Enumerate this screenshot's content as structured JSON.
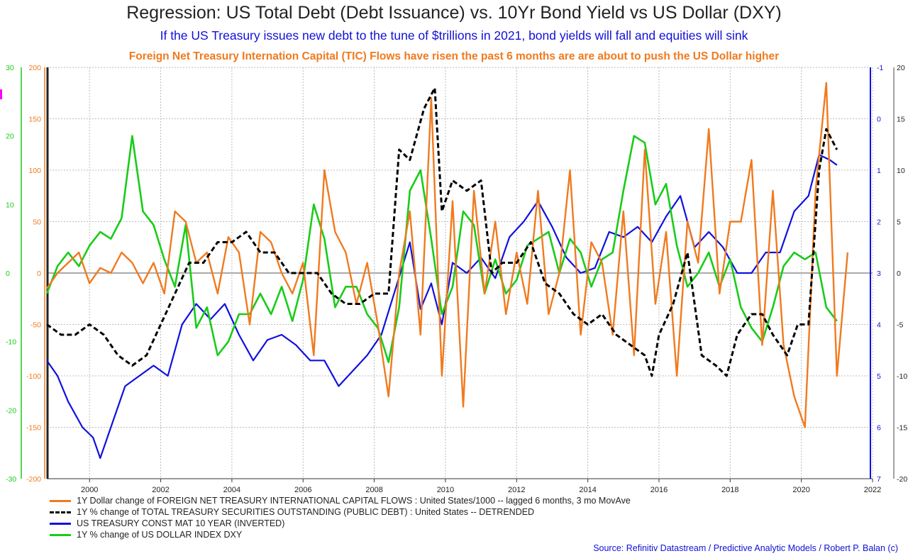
{
  "header": {
    "title": "Regression: US Total Debt (Debt Issuance) vs. 10Yr Bond Yield vs US Dollar (DXY)",
    "subtitle": "If the US Treasury issues new debt to the tune of $trillions in 2021, bond yields will fall and equities will sink",
    "subtitle2": "Foreign Net Treasury Internation Capital (TIC) Flows have risen the past 6 months are are about to push the US Dollar higher"
  },
  "source": "Source: Refinitiv Datastream / Predictive Analytic Models / Robert P. Balan (c)",
  "colors": {
    "tic": "#f07a1e",
    "debt": "#000000",
    "yield": "#1010e0",
    "dxy": "#18cc18"
  },
  "chart_data": {
    "type": "line",
    "xlim": [
      1998.8,
      2022.0
    ],
    "x_ticks": [
      "2000",
      "2002",
      "2004",
      "2006",
      "2008",
      "2010",
      "2012",
      "2014",
      "2016",
      "2018",
      "2020",
      "2022"
    ],
    "axes": {
      "orange_left": {
        "ylim": [
          -200,
          200
        ],
        "ticks": [
          "200",
          "150",
          "100",
          "50",
          "0",
          "-50",
          "-100",
          "-150",
          "-200"
        ]
      },
      "green_left": {
        "ylim": [
          -30,
          30
        ],
        "ticks": [
          "30",
          "20",
          "10",
          "0",
          "-10",
          "-20",
          "-30"
        ]
      },
      "blue_right_inverted": {
        "ylim": [
          7,
          -1
        ],
        "ticks": [
          "-1",
          "0",
          "1",
          "2",
          "3",
          "4",
          "5",
          "6",
          "7"
        ]
      },
      "black_right": {
        "ylim": [
          -20,
          20
        ],
        "ticks": [
          "20",
          "15",
          "10",
          "5",
          "0",
          "-5",
          "-10",
          "-15",
          "-20"
        ]
      }
    },
    "series": [
      {
        "name": "1Y Dollar change of FOREIGN NET TREASURY INTERNATIONAL CAPITAL FLOWS : United States/1000 -- lagged 6 months, 3 mo MovAve",
        "axis": "orange_left",
        "x": [
          1998.8,
          1999.1,
          1999.4,
          1999.7,
          2000.0,
          2000.3,
          2000.6,
          2000.9,
          2001.2,
          2001.5,
          2001.8,
          2002.1,
          2002.4,
          2002.7,
          2003.0,
          2003.3,
          2003.6,
          2003.9,
          2004.2,
          2004.5,
          2004.8,
          2005.1,
          2005.4,
          2005.7,
          2006.0,
          2006.3,
          2006.6,
          2006.9,
          2007.2,
          2007.5,
          2007.8,
          2008.1,
          2008.4,
          2008.7,
          2009.0,
          2009.3,
          2009.6,
          2009.9,
          2010.2,
          2010.5,
          2010.8,
          2011.1,
          2011.4,
          2011.7,
          2012.0,
          2012.3,
          2012.6,
          2012.9,
          2013.2,
          2013.5,
          2013.8,
          2014.1,
          2014.4,
          2014.7,
          2015.0,
          2015.3,
          2015.6,
          2015.9,
          2016.2,
          2016.5,
          2016.8,
          2017.1,
          2017.4,
          2017.7,
          2018.0,
          2018.3,
          2018.6,
          2018.9,
          2019.2,
          2019.5,
          2019.8,
          2020.1,
          2020.4,
          2020.7,
          2021.0,
          2021.3
        ],
        "values": [
          -15,
          0,
          10,
          20,
          -10,
          5,
          0,
          20,
          10,
          -10,
          10,
          -20,
          60,
          50,
          10,
          20,
          -20,
          35,
          20,
          -50,
          40,
          30,
          0,
          -20,
          10,
          -80,
          100,
          40,
          20,
          -30,
          10,
          -50,
          -120,
          0,
          60,
          -60,
          170,
          -100,
          70,
          -130,
          80,
          -20,
          50,
          -40,
          20,
          -30,
          80,
          -40,
          0,
          100,
          -60,
          30,
          10,
          -60,
          60,
          -80,
          120,
          -30,
          40,
          -100,
          50,
          10,
          140,
          -20,
          50,
          50,
          110,
          -70,
          80,
          -70,
          -120,
          -150,
          80,
          185,
          -100,
          20
        ]
      },
      {
        "name": "1Y % change of TOTAL TREASURY SECURITIES OUTSTANDING (PUBLIC DEBT) : United States -- DETRENDED",
        "axis": "black_right",
        "x": [
          1998.8,
          1999.2,
          1999.6,
          2000.0,
          2000.4,
          2000.8,
          2001.2,
          2001.6,
          2002.0,
          2002.4,
          2002.8,
          2003.2,
          2003.6,
          2004.0,
          2004.4,
          2004.8,
          2005.2,
          2005.6,
          2006.0,
          2006.4,
          2006.8,
          2007.2,
          2007.6,
          2008.0,
          2008.4,
          2008.7,
          2009.0,
          2009.4,
          2009.7,
          2009.9,
          2010.2,
          2010.6,
          2011.0,
          2011.3,
          2011.6,
          2012.0,
          2012.4,
          2012.8,
          2013.2,
          2013.6,
          2014.0,
          2014.4,
          2014.8,
          2015.2,
          2015.6,
          2015.8,
          2016.0,
          2016.4,
          2016.8,
          2017.2,
          2017.6,
          2017.9,
          2018.2,
          2018.6,
          2018.9,
          2019.2,
          2019.6,
          2019.9,
          2020.2,
          2020.5,
          2020.7,
          2021.0
        ],
        "values": [
          -5,
          -6,
          -6,
          -5,
          -6,
          -8,
          -9,
          -8,
          -5,
          -2,
          1,
          1,
          3,
          3,
          4,
          2,
          2,
          0,
          0,
          0,
          -2,
          -3,
          -3,
          -2,
          -2,
          12,
          11,
          16,
          18,
          6,
          9,
          8,
          9,
          0,
          1,
          1,
          3,
          -1,
          -2,
          -4,
          -5,
          -4,
          -6,
          -7,
          -8,
          -10,
          -6,
          -3,
          2,
          -8,
          -9,
          -10,
          -6,
          -4,
          -4,
          -6,
          -8,
          -5,
          -5,
          10,
          14,
          12
        ]
      },
      {
        "name": "US TREASURY CONST MAT 10 YEAR (INVERTED)",
        "axis": "blue_right_inverted",
        "x": [
          1998.8,
          1999.1,
          1999.4,
          1999.8,
          2000.1,
          2000.3,
          2000.6,
          2001.0,
          2001.4,
          2001.8,
          2002.2,
          2002.6,
          2003.0,
          2003.4,
          2003.8,
          2004.2,
          2004.6,
          2005.0,
          2005.4,
          2005.8,
          2006.2,
          2006.6,
          2007.0,
          2007.4,
          2007.8,
          2008.2,
          2008.6,
          2009.0,
          2009.3,
          2009.6,
          2009.9,
          2010.2,
          2010.6,
          2011.0,
          2011.4,
          2011.8,
          2012.2,
          2012.6,
          2013.0,
          2013.4,
          2013.8,
          2014.2,
          2014.6,
          2015.0,
          2015.4,
          2015.8,
          2016.2,
          2016.6,
          2017.0,
          2017.4,
          2017.8,
          2018.2,
          2018.6,
          2019.0,
          2019.4,
          2019.8,
          2020.2,
          2020.5,
          2020.8,
          2021.0
        ],
        "values": [
          4.7,
          5.0,
          5.5,
          6.0,
          6.2,
          6.6,
          6.0,
          5.2,
          5.0,
          4.8,
          5.0,
          4.0,
          3.6,
          3.9,
          3.6,
          4.2,
          4.7,
          4.3,
          4.2,
          4.4,
          4.7,
          4.7,
          5.2,
          4.9,
          4.6,
          4.2,
          3.3,
          2.4,
          3.7,
          3.2,
          4.0,
          2.8,
          3.0,
          2.7,
          3.1,
          2.3,
          2.0,
          1.6,
          2.1,
          2.7,
          3.0,
          2.9,
          2.2,
          2.3,
          2.1,
          2.4,
          1.9,
          1.5,
          2.5,
          2.2,
          2.5,
          3.0,
          3.0,
          2.6,
          2.6,
          1.8,
          1.5,
          0.7,
          0.8,
          0.9
        ]
      },
      {
        "name": "1Y % change of US DOLLAR INDEX DXY",
        "axis": "green_left",
        "x": [
          1998.8,
          1999.1,
          1999.4,
          1999.7,
          2000.0,
          2000.3,
          2000.6,
          2000.9,
          2001.2,
          2001.5,
          2001.8,
          2002.1,
          2002.4,
          2002.7,
          2003.0,
          2003.3,
          2003.6,
          2003.9,
          2004.2,
          2004.5,
          2004.8,
          2005.1,
          2005.4,
          2005.7,
          2006.0,
          2006.3,
          2006.6,
          2006.9,
          2007.2,
          2007.5,
          2007.8,
          2008.1,
          2008.4,
          2008.7,
          2009.0,
          2009.3,
          2009.6,
          2009.9,
          2010.2,
          2010.5,
          2010.8,
          2011.1,
          2011.4,
          2011.7,
          2012.0,
          2012.3,
          2012.6,
          2012.9,
          2013.2,
          2013.5,
          2013.8,
          2014.1,
          2014.4,
          2014.7,
          2015.0,
          2015.3,
          2015.6,
          2015.9,
          2016.2,
          2016.5,
          2016.8,
          2017.1,
          2017.4,
          2017.7,
          2018.0,
          2018.3,
          2018.6,
          2018.9,
          2019.2,
          2019.5,
          2019.8,
          2020.1,
          2020.4,
          2020.7,
          2021.0
        ],
        "values": [
          -3,
          1,
          3,
          1,
          4,
          6,
          5,
          8,
          20,
          9,
          7,
          2,
          -2,
          7,
          -8,
          -5,
          -12,
          -10,
          -6,
          -6,
          -3,
          -6,
          -2,
          -7,
          -1,
          10,
          5,
          -5,
          -2,
          -2,
          -6,
          -8,
          -13,
          -5,
          12,
          15,
          5,
          -6,
          -2,
          9,
          7,
          -3,
          2,
          -3,
          -1,
          4,
          5,
          6,
          0,
          5,
          3,
          -2,
          2,
          3,
          12,
          20,
          19,
          10,
          13,
          4,
          -2,
          0,
          3,
          -2,
          2,
          -5,
          -8,
          -10,
          -5,
          1,
          3,
          2,
          3,
          -5,
          -7
        ]
      }
    ]
  },
  "legend": [
    {
      "label": "1Y Dollar change of FOREIGN NET TREASURY INTERNATIONAL CAPITAL FLOWS : United States/1000 -- lagged 6 months, 3 mo MovAve"
    },
    {
      "label": "1Y % change of TOTAL TREASURY SECURITIES OUTSTANDING (PUBLIC DEBT) : United States -- DETRENDED"
    },
    {
      "label": "US TREASURY CONST MAT 10 YEAR (INVERTED)"
    },
    {
      "label": "1Y % change of US DOLLAR INDEX DXY"
    }
  ]
}
